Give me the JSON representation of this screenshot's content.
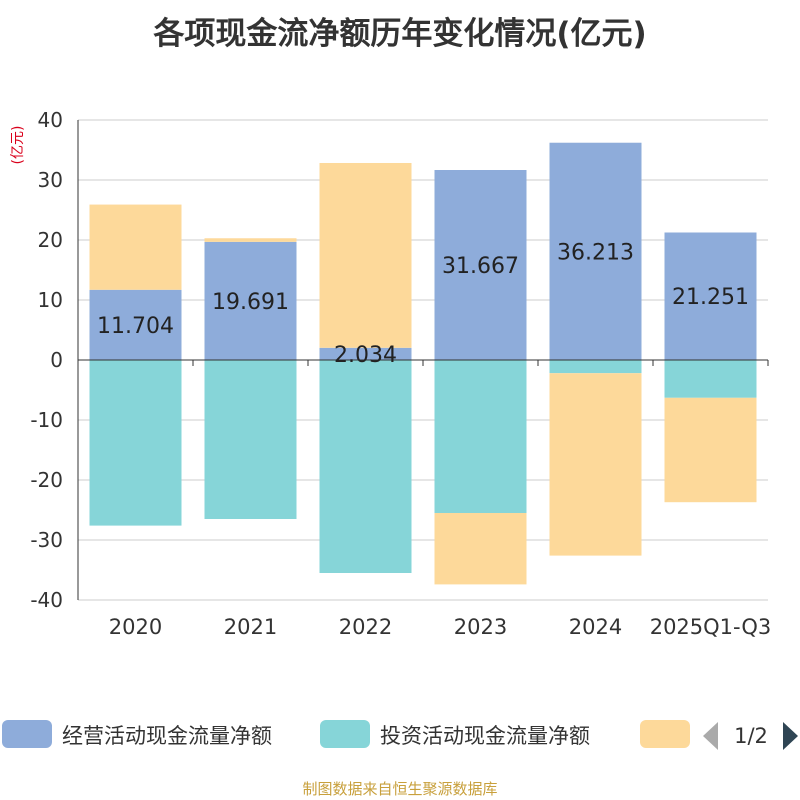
{
  "chart_data": {
    "type": "bar",
    "stacked": true,
    "title": "各项现金流净额历年变化情况(亿元)",
    "ylabel": "(亿元)",
    "ylim": [
      -40,
      40
    ],
    "yticks": [
      40,
      30,
      20,
      10,
      0,
      -10,
      -20,
      -30,
      -40
    ],
    "grid": true,
    "categories": [
      "2020",
      "2021",
      "2022",
      "2023",
      "2024",
      "2025Q1-Q3"
    ],
    "series": [
      {
        "name": "经营活动现金流量净额",
        "color": "#8eacda",
        "values": [
          11.704,
          19.691,
          2.034,
          31.667,
          36.213,
          21.251
        ],
        "data_labels": [
          "11.704",
          "19.691",
          "2.034",
          "31.667",
          "36.213",
          "21.251"
        ]
      },
      {
        "name": "投资活动现金流量净额",
        "color": "#86d5d8",
        "values": [
          -27.6,
          -26.5,
          -35.5,
          -25.5,
          -2.2,
          -6.3
        ]
      },
      {
        "name": "",
        "color": "#fdd99a",
        "values": [
          14.2,
          0.6,
          30.8,
          -11.9,
          -30.4,
          -17.4
        ]
      }
    ],
    "legend": {
      "placement": "bottom",
      "page": "1/2"
    },
    "source_note": "制图数据来自恒生聚源数据库"
  }
}
